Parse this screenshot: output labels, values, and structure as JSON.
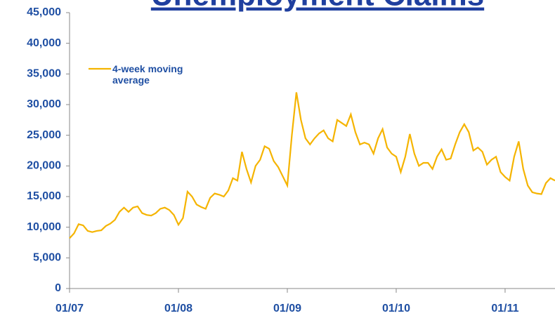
{
  "chart_data": {
    "type": "line",
    "title": "Unemployment Claims",
    "categories": [
      "01/07",
      null,
      null,
      null,
      null,
      null,
      null,
      null,
      null,
      null,
      null,
      null,
      null,
      null,
      null,
      null,
      null,
      null,
      null,
      null,
      null,
      null,
      null,
      null,
      "01/08",
      null,
      null,
      null,
      null,
      null,
      null,
      null,
      null,
      null,
      null,
      null,
      null,
      null,
      null,
      null,
      null,
      null,
      null,
      null,
      null,
      null,
      null,
      null,
      "01/09",
      null,
      null,
      null,
      null,
      null,
      null,
      null,
      null,
      null,
      null,
      null,
      null,
      null,
      null,
      null,
      null,
      null,
      null,
      null,
      null,
      null,
      null,
      null,
      "01/10",
      null,
      null,
      null,
      null,
      null,
      null,
      null,
      null,
      null,
      null,
      null,
      null,
      null,
      null,
      null,
      null,
      null,
      null,
      null,
      null,
      null,
      null,
      null,
      "01/11",
      null,
      null,
      null,
      null,
      null,
      null,
      null,
      null,
      null,
      null,
      null
    ],
    "series": [
      {
        "name": "4-week moving average",
        "color": "#f5b400",
        "values": [
          8200,
          9000,
          10500,
          10300,
          9400,
          9200,
          9400,
          9500,
          10200,
          10600,
          11200,
          12500,
          13200,
          12500,
          13200,
          13400,
          12300,
          12000,
          11900,
          12300,
          13000,
          13200,
          12800,
          12000,
          10400,
          11500,
          15800,
          15000,
          13700,
          13300,
          13000,
          14800,
          15500,
          15300,
          15000,
          16000,
          18000,
          17600,
          22300,
          19500,
          17300,
          20000,
          21000,
          23200,
          22800,
          20800,
          19800,
          18300,
          16800,
          25000,
          32000,
          27500,
          24500,
          23500,
          24500,
          25300,
          25800,
          24500,
          24000,
          27500,
          27000,
          26500,
          28400,
          25500,
          23500,
          23800,
          23500,
          22000,
          24500,
          26000,
          23000,
          22000,
          21500,
          19000,
          21500,
          25200,
          22000,
          20000,
          20500,
          20500,
          19500,
          21500,
          22700,
          21000,
          21200,
          23500,
          25500,
          26800,
          25500,
          22500,
          23000,
          22300,
          20200,
          21000,
          21500,
          19000,
          18200,
          17600,
          21500,
          24000,
          19500,
          16800,
          15700,
          15500,
          15400,
          17200,
          18000,
          17600
        ]
      }
    ],
    "ylim": [
      0,
      45000
    ],
    "yticks": [
      0,
      {
        "value": 5000,
        "label": "5,000"
      },
      {
        "value": 10000,
        "label": "10,000"
      },
      {
        "value": 15000,
        "label": "15,000"
      },
      {
        "value": 20000,
        "label": "20,000"
      },
      {
        "value": 25000,
        "label": "25,000"
      },
      {
        "value": 30000,
        "label": "30,000"
      },
      {
        "value": 35000,
        "label": "35,000"
      },
      {
        "value": 40000,
        "label": "40,000"
      },
      {
        "value": 45000,
        "label": "45,000"
      }
    ]
  }
}
